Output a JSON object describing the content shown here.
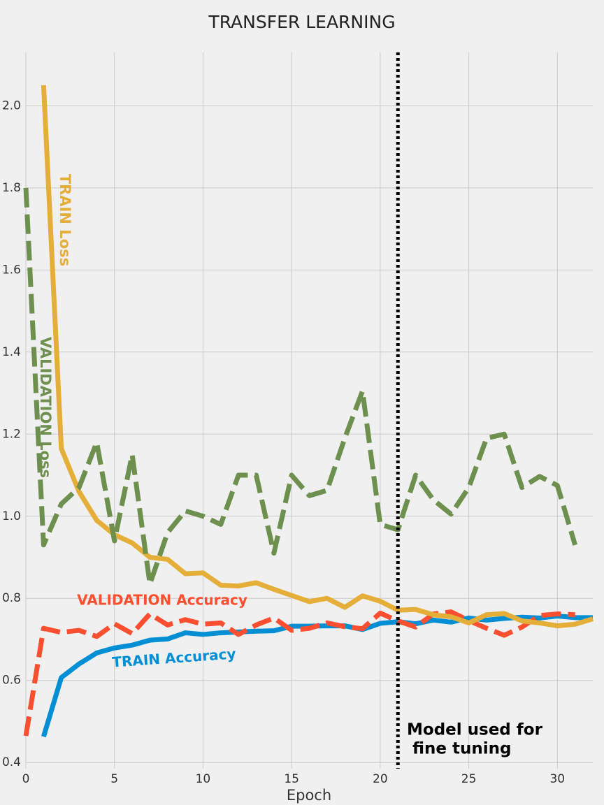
{
  "chart_data": {
    "type": "line",
    "title": "TRANSFER LEARNING",
    "x_label": "Epoch",
    "x": [
      0,
      1,
      2,
      3,
      4,
      5,
      6,
      7,
      8,
      9,
      10,
      11,
      12,
      13,
      14,
      15,
      16,
      17,
      18,
      19,
      20,
      21,
      22,
      23,
      24,
      25,
      26,
      27,
      28,
      29,
      30,
      31,
      32
    ],
    "series": [
      {
        "name": "TRAIN Accuracy",
        "color": "#008fd5",
        "dashed": false,
        "values": [
          null,
          0.463,
          0.607,
          0.64,
          0.667,
          0.679,
          0.686,
          0.698,
          0.701,
          0.716,
          0.712,
          0.716,
          0.718,
          0.72,
          0.721,
          0.732,
          0.732,
          0.733,
          0.733,
          0.724,
          0.739,
          0.743,
          0.738,
          0.747,
          0.742,
          0.752,
          0.747,
          0.751,
          0.754,
          0.752,
          0.757,
          0.753,
          0.753
        ]
      },
      {
        "name": "VALIDATION Accuracy",
        "color": "#fc4f30",
        "dashed": true,
        "values": [
          0.465,
          0.727,
          0.717,
          0.722,
          0.707,
          0.738,
          0.714,
          0.762,
          0.735,
          0.748,
          0.737,
          0.74,
          0.712,
          0.735,
          0.752,
          0.722,
          0.727,
          0.74,
          0.731,
          0.726,
          0.764,
          0.745,
          0.73,
          0.762,
          0.767,
          0.746,
          0.727,
          0.71,
          0.73,
          0.758,
          0.762,
          0.76,
          null
        ]
      },
      {
        "name": "TRAIN Loss",
        "color": "#e5ae38",
        "dashed": false,
        "values": [
          null,
          2.05,
          1.165,
          1.06,
          0.99,
          0.955,
          0.935,
          0.9,
          0.895,
          0.86,
          0.862,
          0.832,
          0.83,
          0.838,
          0.822,
          0.807,
          0.792,
          0.8,
          0.778,
          0.806,
          0.793,
          0.771,
          0.773,
          0.76,
          0.755,
          0.74,
          0.76,
          0.763,
          0.745,
          0.74,
          0.733,
          0.737,
          0.75
        ]
      },
      {
        "name": "VALIDATION Loss",
        "color": "#6d904f",
        "dashed": true,
        "values": [
          1.8,
          0.93,
          1.03,
          1.07,
          1.18,
          0.94,
          1.15,
          0.835,
          0.96,
          1.013,
          1.0,
          0.98,
          1.1,
          1.1,
          0.91,
          1.1,
          1.05,
          1.063,
          1.19,
          1.305,
          0.98,
          0.967,
          1.1,
          1.04,
          1.005,
          1.07,
          1.19,
          1.2,
          1.07,
          1.097,
          1.075,
          0.93,
          null
        ]
      }
    ],
    "xlim": [
      0,
      32
    ],
    "ylim": [
      0.385,
      2.13
    ],
    "xticks": [
      0,
      5,
      10,
      15,
      20,
      25,
      30
    ],
    "yticks": [
      0.4,
      0.6,
      0.8,
      {
        "value": 1,
        "label": "1.0"
      },
      1.2,
      1.4,
      1.6,
      1.8,
      {
        "value": 2,
        "label": "2.0"
      }
    ],
    "grid": true,
    "annotation": {
      "lines": [
        "Model used for",
        " fine tuning"
      ],
      "x": 21
    }
  }
}
